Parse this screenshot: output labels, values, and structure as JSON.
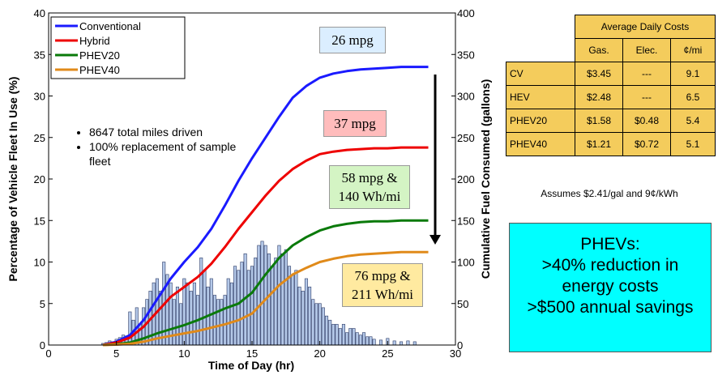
{
  "chart_data": {
    "type": "bar+line",
    "xlabel": "Time of Day (hr)",
    "ylabel_left": "Percentage of Vehicle Fleet In Use (%)",
    "ylabel_right": "Cumulative Fuel Consumed (gallons)",
    "xlim": [
      0,
      30
    ],
    "ylim_left": [
      0,
      40
    ],
    "ylim_right": [
      0,
      400
    ],
    "x_ticks": [
      0,
      5,
      10,
      15,
      20,
      25,
      30
    ],
    "y_ticks_left": [
      0,
      5,
      10,
      15,
      20,
      25,
      30,
      35,
      40
    ],
    "y_ticks_right": [
      0,
      50,
      100,
      150,
      200,
      250,
      300,
      350,
      400
    ],
    "grid": false,
    "legend_position": "top-left",
    "bars": {
      "x": [
        4,
        4.25,
        4.5,
        4.75,
        5,
        5.25,
        5.5,
        5.75,
        6,
        6.25,
        6.5,
        6.75,
        7,
        7.25,
        7.5,
        7.75,
        8,
        8.25,
        8.5,
        8.75,
        9,
        9.25,
        9.5,
        9.75,
        10,
        10.25,
        10.5,
        10.75,
        11,
        11.25,
        11.5,
        11.75,
        12,
        12.25,
        12.5,
        12.75,
        13,
        13.25,
        13.5,
        13.75,
        14,
        14.25,
        14.5,
        14.75,
        15,
        15.25,
        15.5,
        15.75,
        16,
        16.25,
        16.5,
        16.75,
        17,
        17.25,
        17.5,
        17.75,
        18,
        18.25,
        18.5,
        18.75,
        19,
        19.25,
        19.5,
        19.75,
        20,
        20.25,
        20.5,
        20.75,
        21,
        21.25,
        21.5,
        21.75,
        22,
        22.25,
        22.5,
        22.75,
        23,
        23.25,
        23.5,
        23.75,
        24,
        24.5,
        25,
        25.5,
        26,
        26.5,
        27
      ],
      "values": [
        0.2,
        0.3,
        0.5,
        0.4,
        0.7,
        0.9,
        1.2,
        1.1,
        4,
        3,
        4.5,
        2.5,
        4.5,
        5.5,
        6.5,
        7.5,
        8,
        6.5,
        10,
        8.5,
        7.5,
        5.5,
        7,
        5,
        8,
        7.5,
        6.5,
        7.5,
        6,
        10.5,
        9,
        7,
        8,
        6,
        5.5,
        5.5,
        6,
        8,
        7.5,
        9.5,
        9,
        10,
        11,
        9,
        9.5,
        10.5,
        12,
        12.5,
        12,
        11,
        9.5,
        10.5,
        12,
        11,
        11.5,
        9.5,
        8.5,
        9,
        7,
        6.5,
        8,
        7,
        5.5,
        5,
        5,
        4.5,
        3.5,
        3,
        2.5,
        2.5,
        2,
        2.5,
        1.5,
        2,
        2,
        1.5,
        1.2,
        1.5,
        1,
        1,
        0.7,
        0.6,
        0.8,
        0.5,
        0.4,
        0.5,
        0.4
      ]
    },
    "series": [
      {
        "name": "Conventional",
        "color": "#1a1aff",
        "x": [
          4,
          5,
          6,
          7,
          8,
          9,
          10,
          11,
          12,
          13,
          14,
          15,
          16,
          17,
          18,
          19,
          20,
          21,
          22,
          23,
          24,
          25,
          26,
          27,
          28
        ],
        "y": [
          0,
          4,
          12,
          30,
          55,
          80,
          100,
          118,
          140,
          168,
          198,
          225,
          250,
          275,
          298,
          312,
          322,
          327,
          330,
          332,
          333,
          334,
          335,
          335,
          335
        ]
      },
      {
        "name": "Hybrid",
        "color": "#ee0000",
        "x": [
          4,
          5,
          6,
          7,
          8,
          9,
          10,
          11,
          12,
          13,
          14,
          15,
          16,
          17,
          18,
          19,
          20,
          21,
          22,
          23,
          24,
          25,
          26,
          27,
          28
        ],
        "y": [
          0,
          3,
          9,
          22,
          40,
          58,
          70,
          82,
          98,
          118,
          140,
          160,
          180,
          198,
          212,
          222,
          230,
          233,
          235,
          236,
          237,
          237,
          238,
          238,
          238
        ]
      },
      {
        "name": "PHEV20",
        "color": "#0a7a0a",
        "x": [
          4,
          5,
          6,
          7,
          8,
          9,
          10,
          11,
          12,
          13,
          14,
          15,
          16,
          17,
          18,
          19,
          20,
          21,
          22,
          23,
          24,
          25,
          26,
          27,
          28
        ],
        "y": [
          0,
          1,
          3,
          8,
          14,
          19,
          24,
          30,
          37,
          44,
          50,
          63,
          85,
          105,
          120,
          130,
          138,
          143,
          146,
          148,
          149,
          149,
          150,
          150,
          150
        ]
      },
      {
        "name": "PHEV40",
        "color": "#e08a1a",
        "x": [
          4,
          5,
          6,
          7,
          8,
          9,
          10,
          11,
          12,
          13,
          14,
          15,
          16,
          17,
          18,
          19,
          20,
          21,
          22,
          23,
          24,
          25,
          26,
          27,
          28
        ],
        "y": [
          0,
          0.5,
          1.5,
          4,
          8,
          11,
          14,
          17,
          21,
          25,
          30,
          38,
          55,
          72,
          85,
          93,
          100,
          104,
          107,
          109,
          110,
          111,
          112,
          112,
          112
        ]
      }
    ],
    "annotations": {
      "conventional": {
        "lines": [
          "26 mpg"
        ],
        "bg": "#dbeeff"
      },
      "hybrid": {
        "lines": [
          "37 mpg"
        ],
        "bg": "#ffbcbc"
      },
      "phev20": {
        "lines": [
          "58 mpg &",
          "140 Wh/mi"
        ],
        "bg": "#d4f4c4"
      },
      "phev40": {
        "lines": [
          "76 mpg &",
          "211 Wh/mi"
        ],
        "bg": "#ffeaa0"
      }
    },
    "notes": [
      "8647 total miles driven",
      "100% replacement of sample fleet"
    ]
  },
  "cost_table": {
    "title": "Average Daily Costs",
    "columns": [
      "Gas.",
      "Elec.",
      "¢/mi"
    ],
    "rows": [
      {
        "label": "CV",
        "gas": "$3.45",
        "elec": "---",
        "cpm": "9.1"
      },
      {
        "label": "HEV",
        "gas": "$2.48",
        "elec": "---",
        "cpm": "6.5"
      },
      {
        "label": "PHEV20",
        "gas": "$1.58",
        "elec": "$0.48",
        "cpm": "5.4"
      },
      {
        "label": "PHEV40",
        "gas": "$1.21",
        "elec": "$0.72",
        "cpm": "5.1"
      }
    ],
    "footnote": "Assumes $2.41/gal and 9¢/kWh"
  },
  "summary_box": {
    "lines": [
      "PHEVs:",
      ">40% reduction in",
      "energy costs",
      ">$500 annual savings"
    ],
    "color": "#00ffff"
  }
}
